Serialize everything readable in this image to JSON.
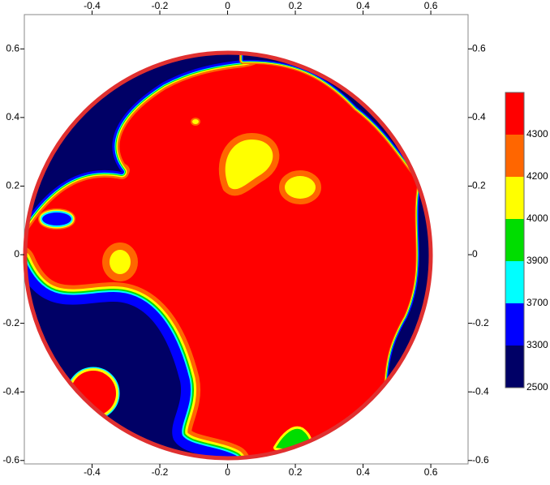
{
  "chart_data": {
    "type": "contour",
    "xlim": [
      -0.6,
      0.71
    ],
    "ylim": [
      -0.61,
      0.7
    ],
    "xticks": [
      -0.4,
      -0.2,
      0,
      0.2,
      0.4,
      0.6
    ],
    "yticks": [
      -0.6,
      -0.4,
      -0.2,
      0,
      0.2,
      0.4,
      0.6
    ],
    "levels": [
      2500,
      3300,
      3700,
      3900,
      4000,
      4200,
      4300
    ],
    "colors": [
      "#000066",
      "#0000ff",
      "#00ffff",
      "#00dd00",
      "#ffff00",
      "#ff6600",
      "#ff0000"
    ],
    "boundary_color": "#e03030"
  }
}
